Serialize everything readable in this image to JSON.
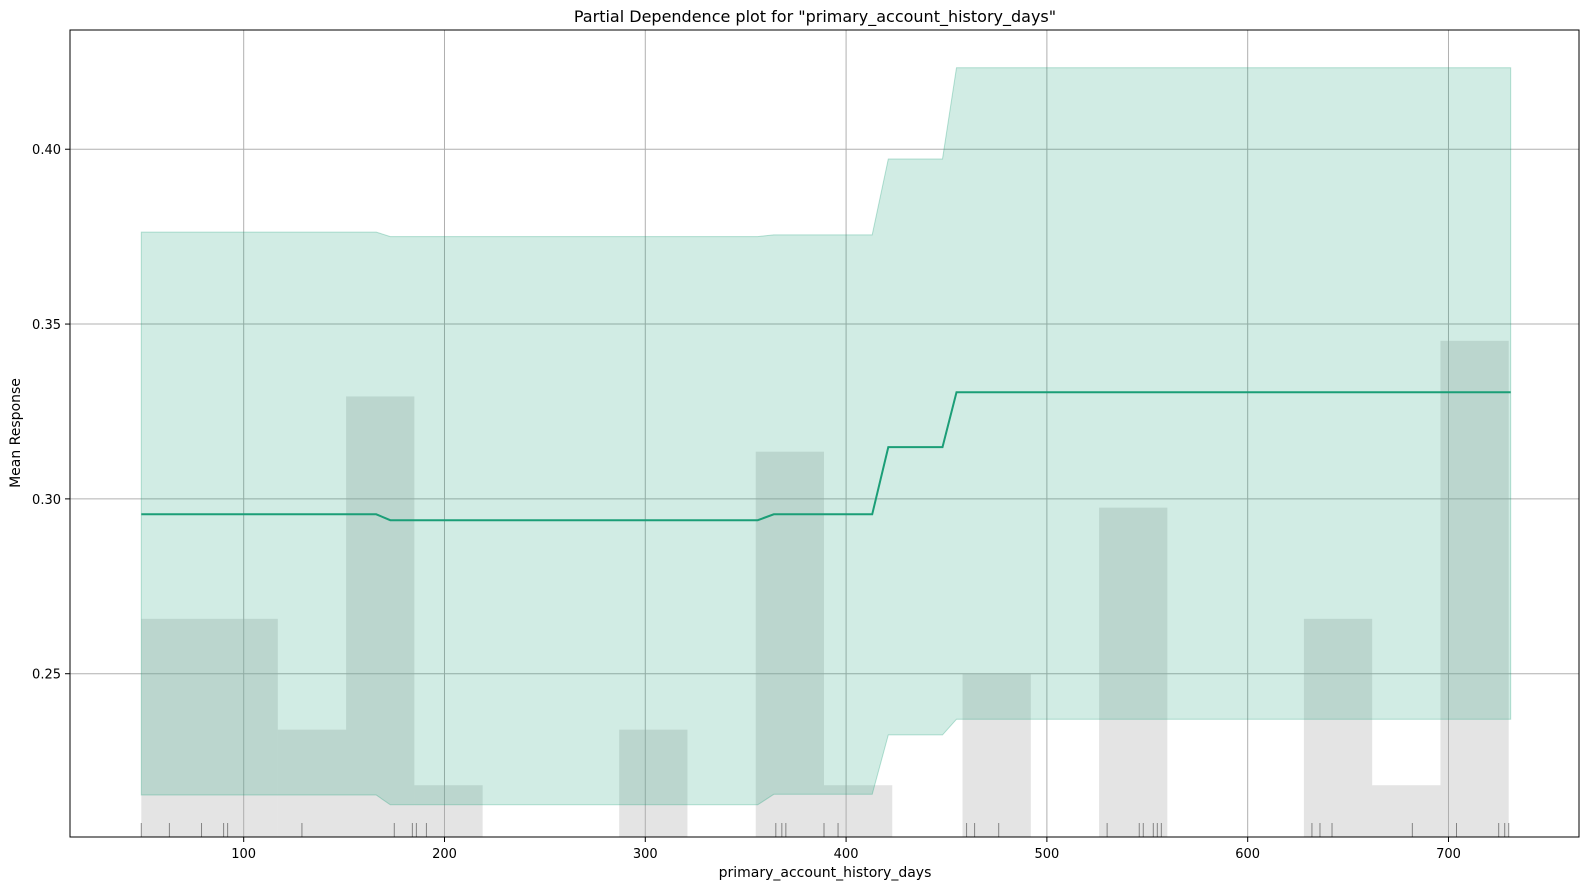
{
  "chart_data": {
    "type": "line",
    "title": "Partial Dependence plot for \"primary_account_history_days\"",
    "xlabel": "primary_account_history_days",
    "ylabel": "Mean Response",
    "xlim": [
      13.5,
      765
    ],
    "ylim": [
      0.2033,
      0.4341
    ],
    "x_ticks": [
      100,
      200,
      300,
      400,
      500,
      600,
      700
    ],
    "y_ticks": [
      0.25,
      0.3,
      0.35,
      0.4
    ],
    "y_tick_labels": [
      "0.25",
      "0.30",
      "0.35",
      "0.40"
    ],
    "grid": true,
    "colors": {
      "line": "#1b9e77",
      "band": "#1b9e77",
      "histogram": "#aaaaaa",
      "rug": "#333333"
    },
    "series": [
      {
        "x": [
          49,
          166,
          173,
          356,
          364,
          413,
          421,
          448,
          455,
          731
        ],
        "y": [
          0.2956,
          0.2956,
          0.2939,
          0.2939,
          0.2956,
          0.2956,
          0.3148,
          0.3148,
          0.3305,
          0.3305
        ],
        "upper": [
          0.3763,
          0.3763,
          0.375,
          0.375,
          0.3755,
          0.3755,
          0.3972,
          0.3972,
          0.4233,
          0.4233
        ],
        "lower": [
          0.2153,
          0.2153,
          0.2125,
          0.2125,
          0.2155,
          0.2155,
          0.2325,
          0.2325,
          0.237,
          0.237
        ]
      }
    ],
    "histogram": {
      "bins": [
        {
          "x0": 49,
          "x1": 117,
          "top": 0.2657
        },
        {
          "x0": 117,
          "x1": 151,
          "top": 0.234
        },
        {
          "x0": 151,
          "x1": 185,
          "top": 0.3293
        },
        {
          "x0": 185,
          "x1": 219,
          "top": 0.2181
        },
        {
          "x0": 287,
          "x1": 321,
          "top": 0.234
        },
        {
          "x0": 355,
          "x1": 389,
          "top": 0.3135
        },
        {
          "x0": 389,
          "x1": 423,
          "top": 0.2181
        },
        {
          "x0": 458,
          "x1": 492,
          "top": 0.2499
        },
        {
          "x0": 526,
          "x1": 560,
          "top": 0.2975
        },
        {
          "x0": 628,
          "x1": 662,
          "top": 0.2657
        },
        {
          "x0": 662,
          "x1": 696,
          "top": 0.2181
        },
        {
          "x0": 696,
          "x1": 730,
          "top": 0.3452
        }
      ]
    },
    "rug": [
      49,
      63,
      79,
      90,
      92,
      129,
      175,
      184,
      186,
      191,
      365,
      368,
      370,
      389,
      396,
      460,
      464,
      476,
      530,
      546,
      548,
      553,
      555,
      557,
      632,
      636,
      642,
      682,
      704,
      725,
      728,
      730
    ]
  }
}
